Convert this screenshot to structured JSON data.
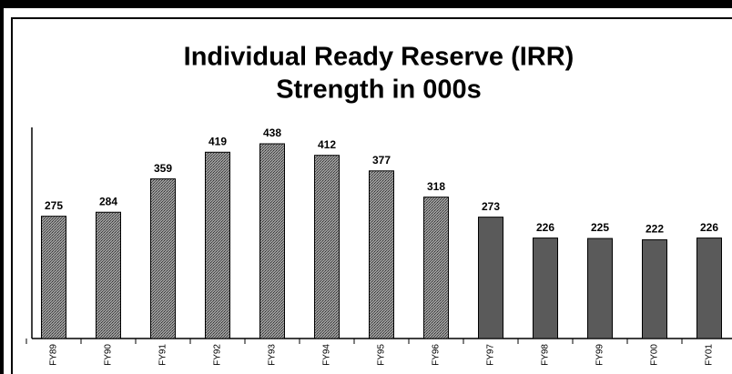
{
  "chart_data": {
    "type": "bar",
    "title": [
      "Individual Ready Reserve (IRR)",
      "Strength in 000s"
    ],
    "categories": [
      "FY89",
      "FY90",
      "FY91",
      "FY92",
      "FY93",
      "FY94",
      "FY95",
      "FY96",
      "FY97",
      "FY98",
      "FY99",
      "FY00",
      "FY01"
    ],
    "values": [
      275,
      284,
      359,
      419,
      438,
      412,
      377,
      318,
      273,
      226,
      225,
      222,
      226
    ],
    "color": "#7a7a7a"
  }
}
